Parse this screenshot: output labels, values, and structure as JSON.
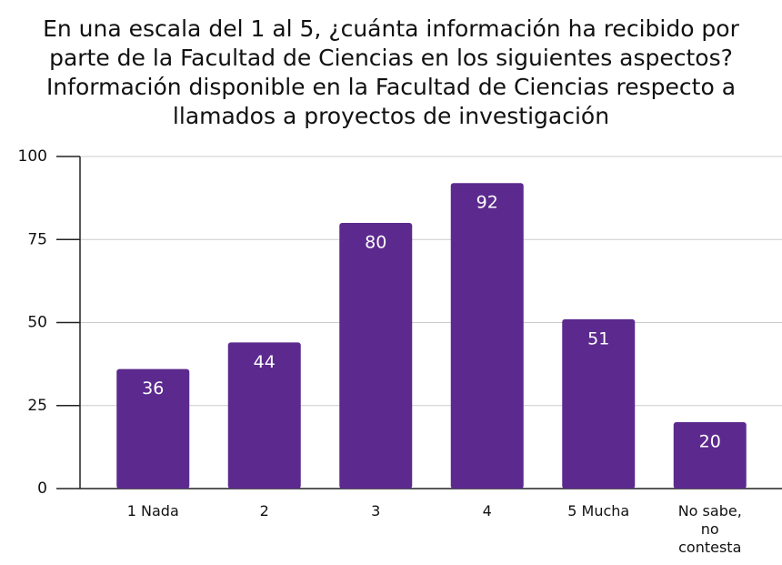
{
  "chart_data": {
    "type": "bar",
    "title": [
      "En una escala del 1 al 5, ¿cuánta información ha recibido por",
      "parte de la Facultad de Ciencias en los siguientes aspectos?",
      "Información disponible en la Facultad de Ciencias respecto a",
      "llamados a proyectos de investigación"
    ],
    "categories": [
      "1 Nada",
      "2",
      "3",
      "4",
      "5 Mucha",
      "No sabe, no contesta"
    ],
    "values": [
      36,
      44,
      80,
      92,
      51,
      20
    ],
    "color": "#5c2a8e",
    "ylim": [
      0,
      100
    ],
    "yticks": [
      0,
      25,
      50,
      75,
      100
    ],
    "grid": true
  }
}
